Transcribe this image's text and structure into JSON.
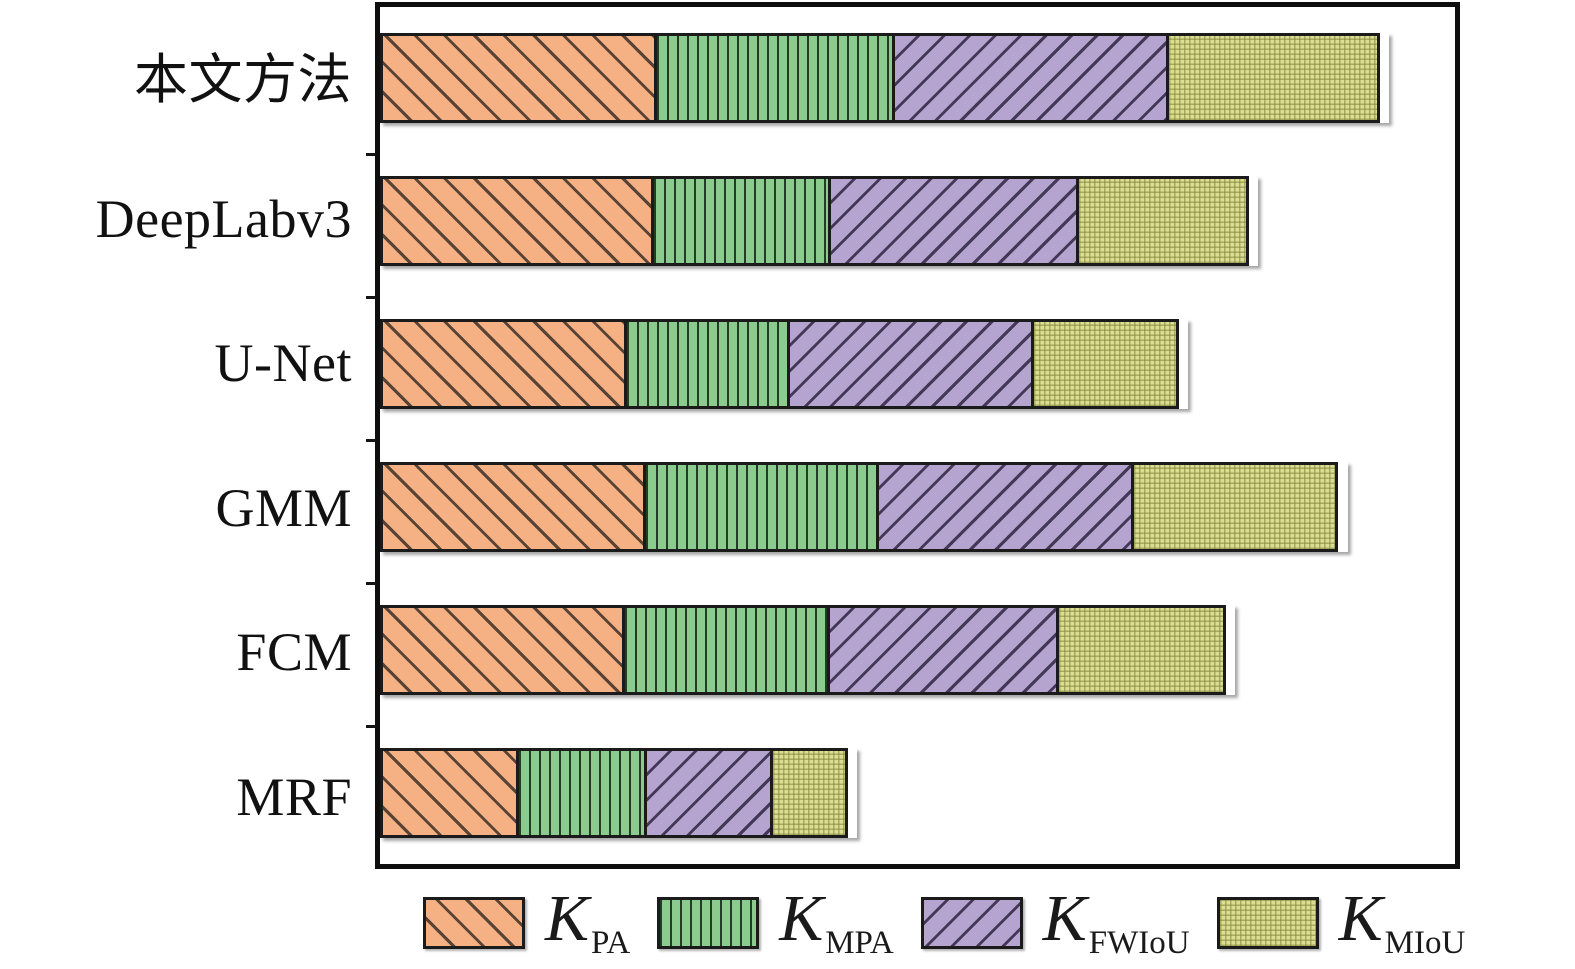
{
  "chart_data": {
    "type": "bar",
    "orientation": "horizontal",
    "stacked": true,
    "title": "",
    "xlabel": "",
    "ylabel": "",
    "axis_tick_labels_visible": false,
    "grid": false,
    "note": "No numeric axis labels are shown; segment values are measured as percent of the plot-area width.",
    "x_range_pct": [
      0,
      100
    ],
    "categories": [
      "本文方法",
      "DeepLabv3",
      "U-Net",
      "GMM",
      "FCM",
      "MRF"
    ],
    "series": [
      {
        "key": "kpa",
        "name": "K_PA",
        "symbol": "K",
        "subscript": "PA",
        "pattern": "diagonal-backslash-hatch",
        "fill_color": "#F5B183",
        "hatch_color": "#3d3026",
        "values_pct": [
          25.8,
          25.5,
          23.0,
          24.7,
          22.8,
          12.9
        ]
      },
      {
        "key": "kmpa",
        "name": "K_MPA",
        "symbol": "K",
        "subscript": "MPA",
        "pattern": "vertical-line-hatch",
        "fill_color": "#8CCB8E",
        "hatch_color": "#182c1b",
        "values_pct": [
          22.4,
          16.7,
          15.4,
          22.0,
          19.3,
          12.2
        ]
      },
      {
        "key": "kfwiou",
        "name": "K_FWIoU",
        "symbol": "K",
        "subscript": "FWIoU",
        "pattern": "diagonal-slash-hatch",
        "fill_color": "#B5A3D0",
        "hatch_color": "#382c4a",
        "values_pct": [
          25.8,
          23.4,
          23.0,
          24.0,
          21.6,
          12.0
        ]
      },
      {
        "key": "kmiou",
        "name": "K_MIoU",
        "symbol": "K",
        "subscript": "MIoU",
        "pattern": "fine-mesh-hatch",
        "fill_color": "#DBDE90",
        "hatch_color": "#84883e",
        "values_pct": [
          19.9,
          16.1,
          13.8,
          19.3,
          15.8,
          7.3
        ]
      }
    ],
    "bar_total_pct": [
      93.9,
      81.7,
      75.2,
      90.0,
      79.5,
      44.4
    ],
    "legend": {
      "position": "bottom",
      "entries": [
        "K_PA",
        "K_MPA",
        "K_FWIoU",
        "K_MIoU"
      ]
    },
    "frame_color": "#0e0e0e"
  }
}
